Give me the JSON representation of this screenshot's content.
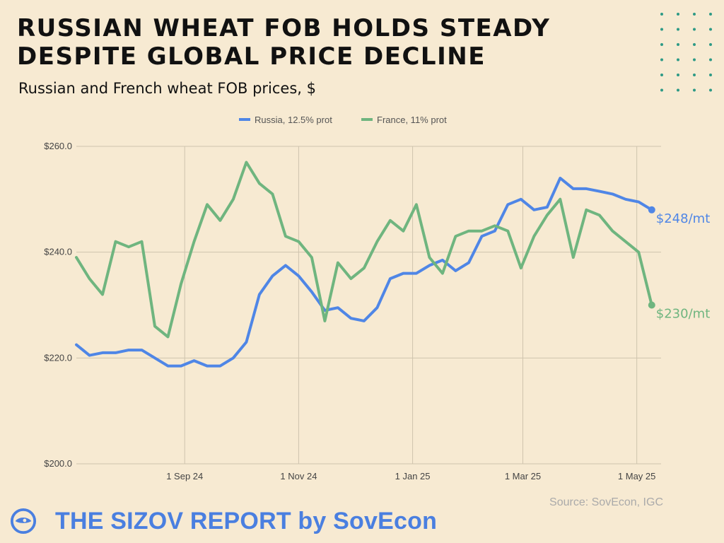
{
  "header": {
    "title_line1": "RUSSIAN WHEAT FOB HOLDS STEADY",
    "title_line2": "DESPITE GLOBAL PRICE DECLINE",
    "subtitle": "Russian and French wheat FOB prices, $"
  },
  "footer": {
    "source": "Source: SovEcon, IGC",
    "brand": "THE SIZOV REPORT by SovEcon",
    "brand_icon": "sovecon-logo-icon"
  },
  "colors": {
    "russia": "#4f86e6",
    "france": "#6fb57f",
    "background": "#f7ead2",
    "brand": "#4a7fe0",
    "dots": "#2e9a86"
  },
  "chart_data": {
    "type": "line",
    "ylim": [
      200,
      260
    ],
    "yticks": [
      "$260.0",
      "$240.0",
      "$220.0",
      "$200.0"
    ],
    "ytick_values": [
      260,
      240,
      220,
      200
    ],
    "xticks": [
      "1 Sep 24",
      "1 Nov 24",
      "1 Jan 25",
      "1 Mar 25",
      "1 May 25"
    ],
    "xtick_dates": [
      "2024-09-01",
      "2024-11-01",
      "2025-01-01",
      "2025-03-01",
      "2025-05-01"
    ],
    "xlim": [
      "2024-07-05",
      "2025-05-14"
    ],
    "grid": true,
    "legend_position": "top",
    "x": [
      "2024-07-05",
      "2024-07-12",
      "2024-07-19",
      "2024-07-26",
      "2024-08-02",
      "2024-08-09",
      "2024-08-16",
      "2024-08-23",
      "2024-08-30",
      "2024-09-06",
      "2024-09-13",
      "2024-09-20",
      "2024-09-27",
      "2024-10-04",
      "2024-10-11",
      "2024-10-18",
      "2024-10-25",
      "2024-11-01",
      "2024-11-08",
      "2024-11-15",
      "2024-11-22",
      "2024-11-29",
      "2024-12-06",
      "2024-12-13",
      "2024-12-20",
      "2024-12-27",
      "2025-01-03",
      "2025-01-10",
      "2025-01-17",
      "2025-01-24",
      "2025-01-31",
      "2025-02-07",
      "2025-02-14",
      "2025-02-21",
      "2025-02-28",
      "2025-03-07",
      "2025-03-14",
      "2025-03-21",
      "2025-03-28",
      "2025-04-04",
      "2025-04-11",
      "2025-04-18",
      "2025-04-25",
      "2025-05-02",
      "2025-05-09"
    ],
    "series": [
      {
        "name": "Russia, 12.5% prot",
        "color": "#4f86e6",
        "end_label": "$248/mt",
        "values": [
          222.5,
          220.5,
          221,
          221,
          221.5,
          221.5,
          220,
          218.5,
          218.5,
          219.5,
          218.5,
          218.5,
          220,
          223,
          232,
          235.5,
          237.5,
          235.5,
          232.5,
          229,
          229.5,
          227.5,
          227,
          229.5,
          235,
          236,
          236,
          237.5,
          238.5,
          236.5,
          238,
          243,
          244,
          249,
          250,
          248,
          248.5,
          254,
          252,
          252,
          251.5,
          251,
          250,
          249.5,
          248
        ]
      },
      {
        "name": "France, 11% prot",
        "color": "#6fb57f",
        "end_label": "$230/mt",
        "values": [
          239,
          235,
          232,
          242,
          241,
          242,
          226,
          224,
          234,
          242,
          249,
          246,
          250,
          257,
          253,
          251,
          243,
          242,
          239,
          227,
          238,
          235,
          237,
          242,
          246,
          244,
          249,
          239,
          236,
          243,
          244,
          244,
          245,
          244,
          237,
          243,
          247,
          250,
          239,
          248,
          247,
          244,
          242,
          240,
          230
        ]
      }
    ]
  }
}
